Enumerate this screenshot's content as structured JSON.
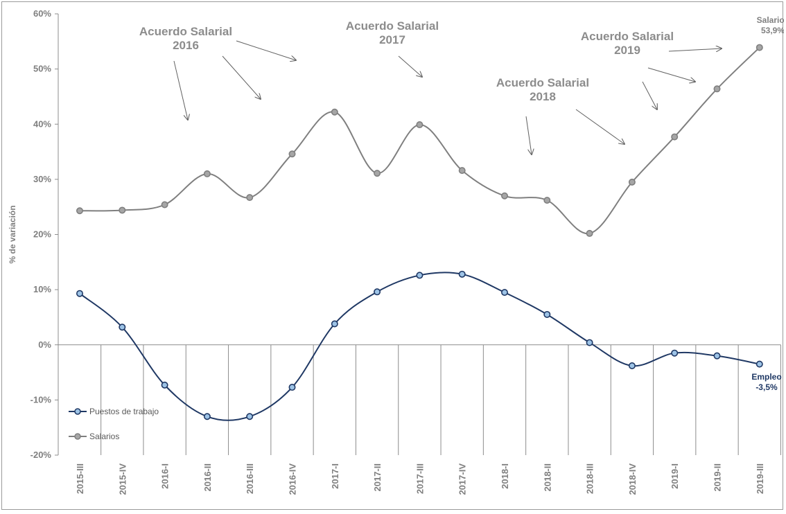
{
  "chart_data": {
    "type": "line",
    "title": "",
    "ylabel": "% de variación",
    "xlabel": "",
    "ylim": [
      -20,
      60
    ],
    "yticks": [
      -20,
      -10,
      0,
      10,
      20,
      30,
      40,
      50,
      60
    ],
    "ytick_labels": [
      "-20%",
      "-10%",
      "0%",
      "10%",
      "20%",
      "30%",
      "40%",
      "50%",
      "60%"
    ],
    "grid": false,
    "legend_position": "bottom-left",
    "categories": [
      "2015-III",
      "2015-IV",
      "2016-I",
      "2016-II",
      "2016-III",
      "2016-IV",
      "2017-I",
      "2017-II",
      "2017-III",
      "2017-IV",
      "2018-I",
      "2018-II",
      "2018-III",
      "2018-IV",
      "2019-I",
      "2019-II",
      "2019-III"
    ],
    "series": [
      {
        "name": "Puestos de trabajo",
        "color": "#1f3864",
        "marker_fill": "#9dc3e6",
        "values": [
          9.3,
          3.2,
          -7.3,
          -13.0,
          -13.0,
          -7.7,
          3.8,
          9.6,
          12.6,
          12.8,
          9.5,
          5.5,
          0.4,
          -3.8,
          -1.5,
          -2.0,
          -3.5
        ]
      },
      {
        "name": "Salarios",
        "color": "#7f7f7f",
        "marker_fill": "#a6a6a6",
        "values": [
          24.3,
          24.4,
          25.4,
          31.0,
          26.7,
          34.6,
          42.2,
          31.1,
          39.9,
          31.6,
          27.0,
          26.2,
          20.2,
          29.5,
          37.7,
          46.4,
          53.9
        ]
      }
    ],
    "end_labels": [
      {
        "series": "Salarios",
        "lines": [
          "Salarios",
          "53,9%"
        ],
        "color": "#7f7f7f"
      },
      {
        "series": "Puestos de trabajo",
        "lines": [
          "Empleo",
          "-3,5%"
        ],
        "color": "#1f3864"
      }
    ],
    "annotations": [
      {
        "lines": [
          "Acuerdo Salarial",
          "2016"
        ]
      },
      {
        "lines": [
          "Acuerdo Salarial",
          "2017"
        ]
      },
      {
        "lines": [
          "Acuerdo Salarial",
          "2018"
        ]
      },
      {
        "lines": [
          "Acuerdo Salarial",
          "2019"
        ]
      }
    ]
  }
}
